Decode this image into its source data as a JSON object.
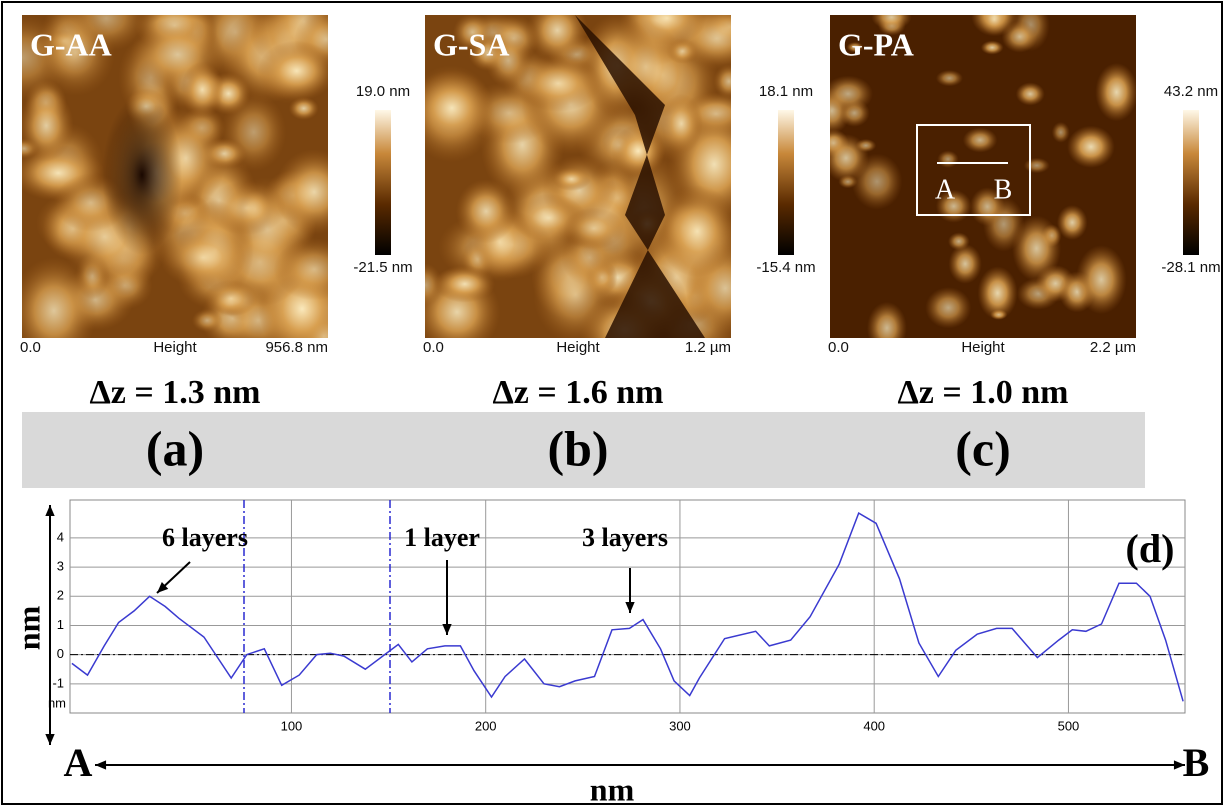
{
  "panels": [
    {
      "name": "G-AA",
      "z_max": "19.0 nm",
      "z_min": "-21.5 nm",
      "x_start": "0.0",
      "channel": "Height",
      "x_end": "956.8 nm",
      "delta_z": "Δz  = 1.3 nm",
      "letter": "(a)"
    },
    {
      "name": "G-SA",
      "z_max": "18.1 nm",
      "z_min": "-15.4 nm",
      "x_start": "0.0",
      "channel": "Height",
      "x_end": "1.2 µm",
      "delta_z": "Δz  = 1.6 nm",
      "letter": "(b)"
    },
    {
      "name": "G-PA",
      "z_max": "43.2 nm",
      "z_min": "-28.1 nm",
      "x_start": "0.0",
      "channel": "Height",
      "x_end": "2.2 µm",
      "delta_z": "Δz  = 1.0 nm",
      "letter": "(c)",
      "marker_start": "A",
      "marker_end": "B"
    }
  ],
  "chart_data": {
    "type": "line",
    "color": "#3a3ad0",
    "x": [
      -13,
      -5,
      3.6,
      11,
      19,
      27,
      35,
      42,
      55,
      69,
      77,
      86,
      95,
      104,
      113,
      120,
      127,
      138,
      148,
      155,
      162,
      170,
      179,
      187,
      194,
      203,
      210,
      220,
      230,
      238,
      246,
      256,
      265,
      274,
      281,
      290,
      297,
      305,
      310,
      323,
      339,
      346,
      357,
      367,
      382,
      392,
      401,
      413,
      423,
      433,
      442,
      453,
      463,
      471,
      484,
      495,
      502,
      509,
      517,
      526,
      535,
      542,
      550,
      559
    ],
    "values": [
      -0.3,
      -0.7,
      0.3,
      1.1,
      1.5,
      2.0,
      1.65,
      1.25,
      0.6,
      -0.8,
      0,
      0.2,
      -1.05,
      -0.7,
      0,
      0.05,
      -0.05,
      -0.5,
      0,
      0.35,
      -0.25,
      0.2,
      0.3,
      0.3,
      -0.55,
      -1.45,
      -0.75,
      -0.15,
      -1.0,
      -1.1,
      -0.9,
      -0.75,
      0.85,
      0.9,
      1.2,
      0.2,
      -0.9,
      -1.4,
      -0.8,
      0.55,
      0.8,
      0.3,
      0.5,
      1.3,
      3.1,
      4.85,
      4.5,
      2.6,
      0.4,
      -0.75,
      0.15,
      0.7,
      0.9,
      0.9,
      -0.1,
      0.5,
      0.85,
      0.8,
      1.05,
      2.45,
      2.45,
      2.0,
      0.5,
      -1.6
    ],
    "xlim": [
      -14,
      560
    ],
    "ylim": [
      -2,
      5.3
    ],
    "xticks": [
      100,
      200,
      300,
      400,
      500
    ],
    "yticks": [
      -1,
      0,
      1,
      2,
      3,
      4
    ],
    "grid": true,
    "y_unit_label": "nm",
    "y_label": "nm",
    "x_label": "nm",
    "start_label": "A",
    "end_label": "B",
    "annotations": [
      "6 layers",
      "1 layer",
      "3 layers",
      "(d)"
    ]
  }
}
